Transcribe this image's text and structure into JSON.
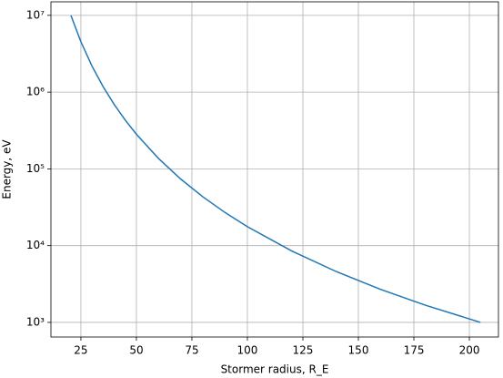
{
  "chart_data": {
    "type": "line",
    "x_label": "Stormer radius, R_E",
    "y_label": "Energy, eV",
    "x": [
      20.5,
      25,
      30,
      35,
      40,
      45,
      50,
      60,
      70,
      80,
      90,
      100,
      120,
      140,
      160,
      180,
      205
    ],
    "series": [
      {
        "name": "Energy",
        "color": "#1f77b4",
        "values": [
          10000000,
          4521000,
          2180000,
          1177000,
          689900,
          430700,
          282600,
          136300,
          73560,
          43120,
          26920,
          17660,
          8517,
          4597,
          2695,
          1682,
          1000
        ]
      }
    ],
    "xlim": [
      11.5,
      213.1
    ],
    "ylim": [
      645,
      15000000
    ],
    "xticks": [
      25,
      50,
      75,
      100,
      125,
      150,
      175,
      200
    ],
    "yticks": [
      {
        "value": 1000,
        "label": "10³"
      },
      {
        "value": 10000,
        "label": "10⁴"
      },
      {
        "value": 100000,
        "label": "10⁵"
      },
      {
        "value": 1000000,
        "label": "10⁶"
      },
      {
        "value": 10000000,
        "label": "10⁷"
      }
    ],
    "y_scale": "log",
    "grid": true
  }
}
